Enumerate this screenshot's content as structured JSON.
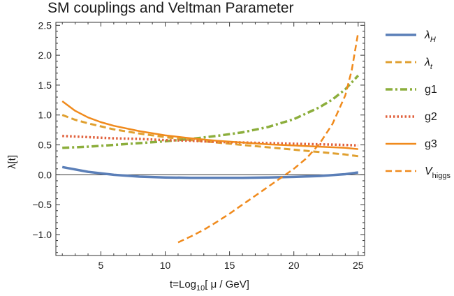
{
  "chart_data": {
    "type": "line",
    "title": "SM couplings and Veltman Parameter",
    "xlabel": {
      "prefix": "t=Log",
      "sub": "10",
      "suffix": "[ μ / GeV]"
    },
    "ylabel": "λ[t]",
    "xlim": [
      1.5,
      25.5
    ],
    "ylim": [
      -1.35,
      2.55
    ],
    "xticks": [
      5,
      10,
      15,
      20,
      25
    ],
    "xtick_labels": [
      "5",
      "10",
      "15",
      "20",
      "25"
    ],
    "yticks": [
      2.5,
      2.0,
      1.5,
      1.0,
      0.5,
      0.0,
      -0.5,
      -1.0
    ],
    "ytick_labels": [
      "2.5",
      "2.0",
      "1.5",
      "1.0",
      "0.5",
      "0.0",
      "−0.5",
      "−1.0"
    ],
    "grid": false,
    "legend_position": "right",
    "series": [
      {
        "name": "λ",
        "sub": "H",
        "italic": true,
        "color": "#5b7fb8",
        "dash": "",
        "width": 3.5,
        "x": [
          2,
          4,
          6,
          8,
          10,
          12,
          14,
          16,
          18,
          20,
          22,
          24,
          25
        ],
        "y": [
          0.13,
          0.05,
          0.0,
          -0.03,
          -0.045,
          -0.05,
          -0.05,
          -0.05,
          -0.045,
          -0.035,
          -0.02,
          0.01,
          0.04
        ]
      },
      {
        "name": "λ",
        "sub": "t",
        "italic": true,
        "color": "#e0a030",
        "dash": "9,5",
        "width": 3,
        "x": [
          2,
          3,
          4,
          5,
          6,
          8,
          10,
          12,
          14,
          16,
          18,
          20,
          22,
          24,
          25
        ],
        "y": [
          1.0,
          0.92,
          0.86,
          0.81,
          0.76,
          0.69,
          0.63,
          0.58,
          0.54,
          0.5,
          0.46,
          0.42,
          0.38,
          0.34,
          0.31
        ]
      },
      {
        "name": "g1",
        "sub": "",
        "italic": false,
        "color": "#8cae3c",
        "dash": "10,4,3,4",
        "width": 3.5,
        "x": [
          2,
          4,
          6,
          8,
          10,
          12,
          14,
          16,
          18,
          20,
          21,
          22,
          23,
          24,
          25
        ],
        "y": [
          0.45,
          0.47,
          0.5,
          0.53,
          0.56,
          0.6,
          0.65,
          0.71,
          0.8,
          0.93,
          1.03,
          1.13,
          1.26,
          1.43,
          1.66
        ]
      },
      {
        "name": "g2",
        "sub": "",
        "italic": false,
        "color": "#e0603c",
        "dash": "2.5,3",
        "width": 3.5,
        "x": [
          2,
          4,
          6,
          8,
          10,
          12,
          14,
          16,
          18,
          20,
          22,
          24,
          25
        ],
        "y": [
          0.65,
          0.63,
          0.61,
          0.6,
          0.58,
          0.57,
          0.55,
          0.54,
          0.53,
          0.52,
          0.51,
          0.5,
          0.49
        ]
      },
      {
        "name": "g3",
        "sub": "",
        "italic": false,
        "color": "#f08a1c",
        "dash": "",
        "width": 2.5,
        "x": [
          2,
          3,
          4,
          5,
          6,
          8,
          10,
          12,
          14,
          16,
          18,
          20,
          22,
          24,
          25
        ],
        "y": [
          1.23,
          1.07,
          0.96,
          0.88,
          0.82,
          0.73,
          0.66,
          0.61,
          0.57,
          0.54,
          0.51,
          0.49,
          0.47,
          0.45,
          0.43
        ]
      },
      {
        "name": "V",
        "sub": "higgs",
        "italic": true,
        "color": "#f08a1c",
        "dash": "9,5",
        "width": 2.5,
        "x": [
          11,
          12,
          13,
          14,
          15,
          16,
          17,
          18,
          19,
          20,
          21,
          22,
          23,
          24,
          24.5,
          25
        ],
        "y": [
          -1.13,
          -1.03,
          -0.92,
          -0.79,
          -0.65,
          -0.5,
          -0.35,
          -0.2,
          -0.05,
          0.1,
          0.28,
          0.52,
          0.85,
          1.33,
          1.75,
          2.38
        ]
      }
    ]
  }
}
